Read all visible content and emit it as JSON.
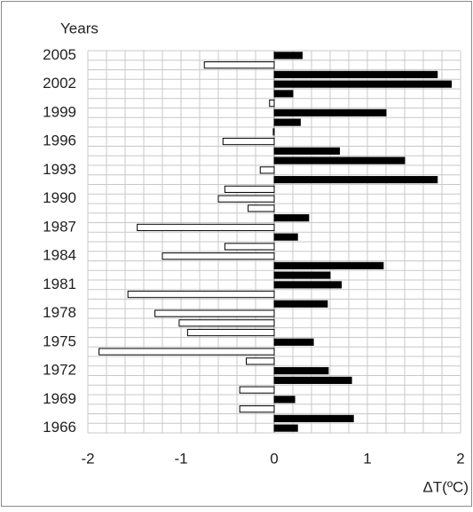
{
  "chart_data": {
    "type": "hbar",
    "ylabel": "Years",
    "xlabel": "ΔT(ºC)",
    "categories": [
      "1966",
      null,
      null,
      "1969",
      null,
      null,
      "1972",
      null,
      null,
      "1975",
      null,
      null,
      "1978",
      null,
      null,
      "1981",
      null,
      null,
      "1984",
      null,
      null,
      "1987",
      null,
      null,
      "1990",
      null,
      null,
      "1993",
      null,
      null,
      "1996",
      null,
      null,
      "1999",
      null,
      null,
      "2002",
      null,
      null,
      "2005"
    ],
    "values": [
      0.25,
      0.85,
      -0.37,
      0.22,
      -0.37,
      0.83,
      0.58,
      -0.3,
      -1.88,
      0.42,
      -0.93,
      -1.02,
      -1.28,
      0.57,
      -1.57,
      0.72,
      0.6,
      1.17,
      -1.2,
      -0.53,
      0.25,
      -1.47,
      0.37,
      -0.28,
      -0.6,
      -0.53,
      1.75,
      -0.15,
      1.4,
      0.7,
      -0.55,
      -0.01,
      0.28,
      1.2,
      -0.05,
      0.2,
      1.9,
      1.75,
      -0.75,
      0.3
    ],
    "colors": {
      "positive": "#000000",
      "negative": "#ffffff",
      "outline": "#000000"
    },
    "xlim": [
      -2,
      2
    ],
    "xticks": [
      -2,
      -1,
      0,
      1,
      2
    ],
    "xgrid": [
      -2,
      -1.8,
      -1.6,
      -1.4,
      -1.2,
      -1,
      -0.8,
      -0.6,
      -0.4,
      -0.2,
      0,
      0.2,
      0.4,
      0.6,
      0.8,
      1,
      1.2,
      1.4,
      1.6,
      1.8,
      2
    ],
    "grid": true
  }
}
